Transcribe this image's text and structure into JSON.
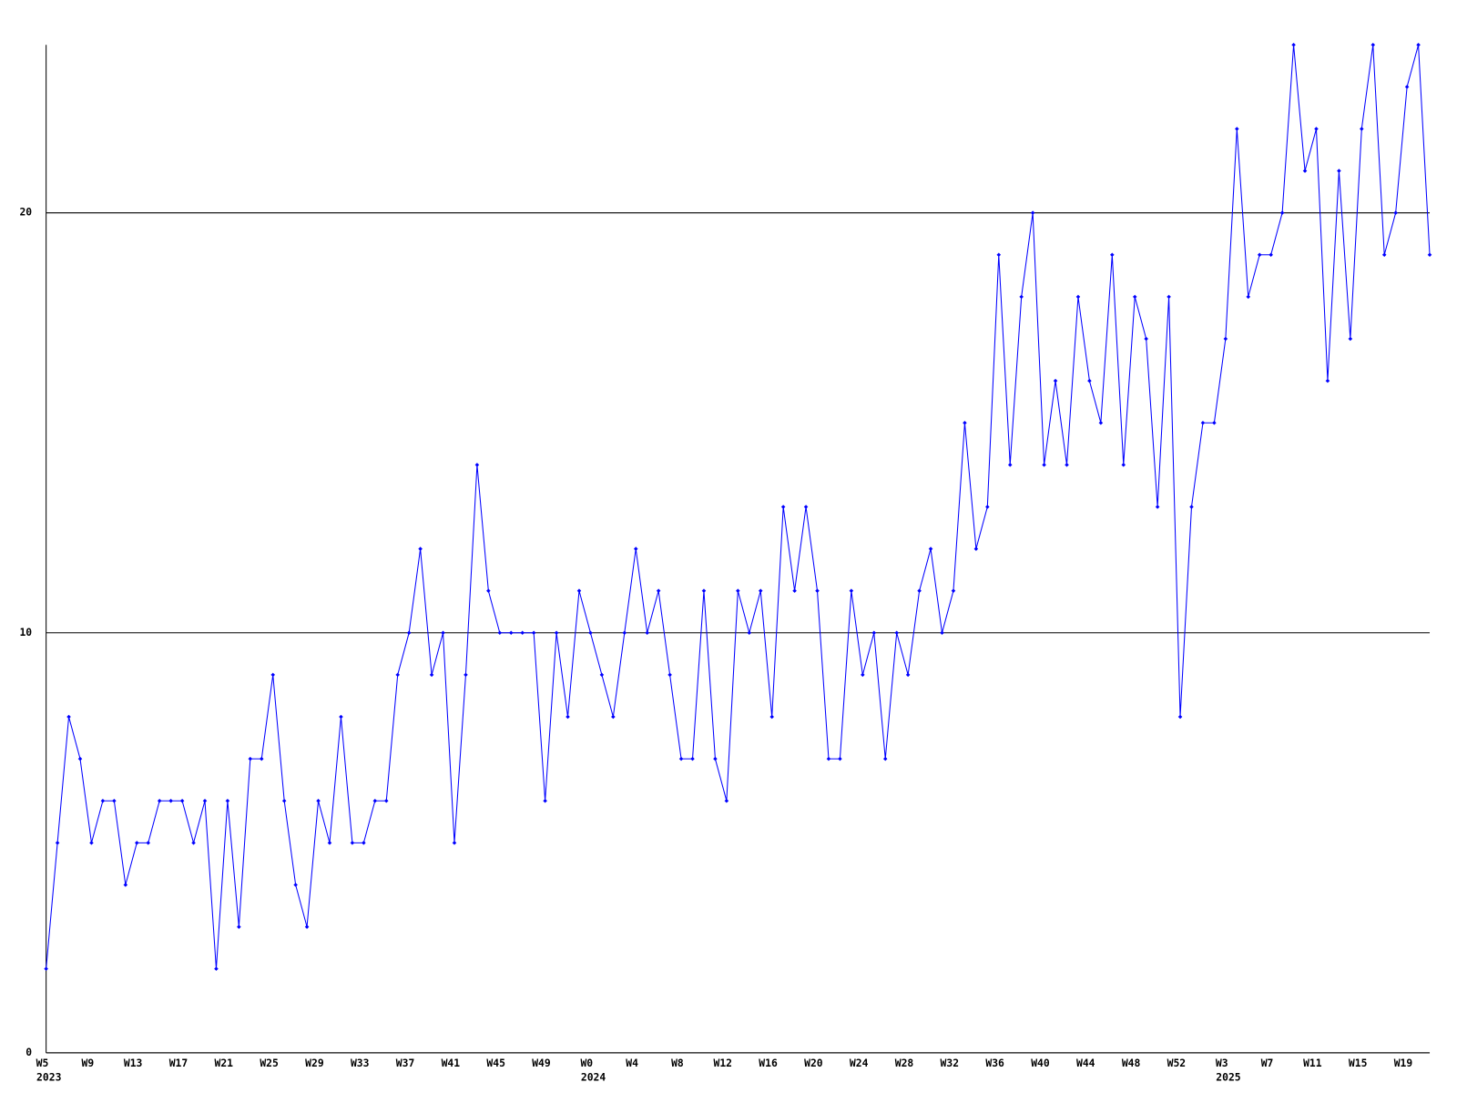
{
  "chart_data": {
    "type": "line",
    "categories": [
      "W5",
      null,
      null,
      null,
      "W9",
      null,
      null,
      null,
      "W13",
      null,
      null,
      null,
      "W17",
      null,
      null,
      null,
      "W21",
      null,
      null,
      null,
      "W25",
      null,
      null,
      null,
      "W29",
      null,
      null,
      null,
      "W33",
      null,
      null,
      null,
      "W37",
      null,
      null,
      null,
      "W41",
      null,
      null,
      null,
      "W45",
      null,
      null,
      null,
      "W49",
      null,
      null,
      null,
      "W0",
      null,
      null,
      null,
      "W4",
      null,
      null,
      null,
      "W8",
      null,
      null,
      null,
      "W12",
      null,
      null,
      null,
      "W16",
      null,
      null,
      null,
      "W20",
      null,
      null,
      null,
      "W24",
      null,
      null,
      null,
      "W28",
      null,
      null,
      null,
      "W32",
      null,
      null,
      null,
      "W36",
      null,
      null,
      null,
      "W40",
      null,
      null,
      null,
      "W44",
      null,
      null,
      null,
      "W48",
      null,
      null,
      null,
      "W52",
      null,
      null,
      null,
      "W3",
      null,
      null,
      null,
      "W7",
      null,
      null,
      null,
      "W11",
      null,
      null,
      null,
      "W15",
      null,
      null,
      null,
      "W19",
      null,
      null
    ],
    "year_labels": [
      "2023",
      null,
      null,
      null,
      null,
      null,
      null,
      null,
      null,
      null,
      null,
      null,
      null,
      null,
      null,
      null,
      null,
      null,
      null,
      null,
      null,
      null,
      null,
      null,
      null,
      null,
      null,
      null,
      null,
      null,
      null,
      null,
      null,
      null,
      null,
      null,
      null,
      null,
      null,
      null,
      null,
      null,
      null,
      null,
      null,
      null,
      null,
      null,
      "2024",
      null,
      null,
      null,
      null,
      null,
      null,
      null,
      null,
      null,
      null,
      null,
      null,
      null,
      null,
      null,
      null,
      null,
      null,
      null,
      null,
      null,
      null,
      null,
      null,
      null,
      null,
      null,
      null,
      null,
      null,
      null,
      null,
      null,
      null,
      null,
      null,
      null,
      null,
      null,
      null,
      null,
      null,
      null,
      null,
      null,
      null,
      null,
      null,
      null,
      null,
      null,
      null,
      null,
      null,
      null,
      "2025",
      null,
      null,
      null,
      null,
      null,
      null,
      null,
      null,
      null,
      null,
      null,
      null,
      null,
      null,
      null,
      null,
      null,
      null
    ],
    "series": [
      {
        "color": "#0000ff",
        "values": [
          2,
          5,
          8,
          7,
          5,
          6,
          6,
          4,
          5,
          5,
          6,
          6,
          6,
          5,
          6,
          2,
          6,
          3,
          7,
          7,
          9,
          6,
          4,
          3,
          6,
          5,
          8,
          5,
          5,
          6,
          6,
          9,
          10,
          12,
          9,
          10,
          5,
          9,
          14,
          11,
          10,
          10,
          10,
          10,
          6,
          10,
          8,
          11,
          10,
          9,
          8,
          10,
          12,
          10,
          11,
          9,
          7,
          7,
          11,
          7,
          6,
          11,
          10,
          11,
          8,
          13,
          11,
          13,
          11,
          7,
          7,
          11,
          9,
          10,
          7,
          10,
          9,
          11,
          12,
          10,
          11,
          15,
          12,
          13,
          19,
          14,
          18,
          20,
          14,
          16,
          14,
          18,
          16,
          15,
          19,
          14,
          18,
          17,
          13,
          18,
          8,
          13,
          15,
          15,
          17,
          22,
          18,
          19,
          19,
          20,
          24,
          21,
          22,
          16,
          21,
          17,
          22,
          24,
          19,
          20,
          23,
          24,
          19
        ]
      }
    ],
    "ylim": [
      0,
      24
    ],
    "yticks": [
      0,
      10,
      20
    ],
    "grid": true
  }
}
